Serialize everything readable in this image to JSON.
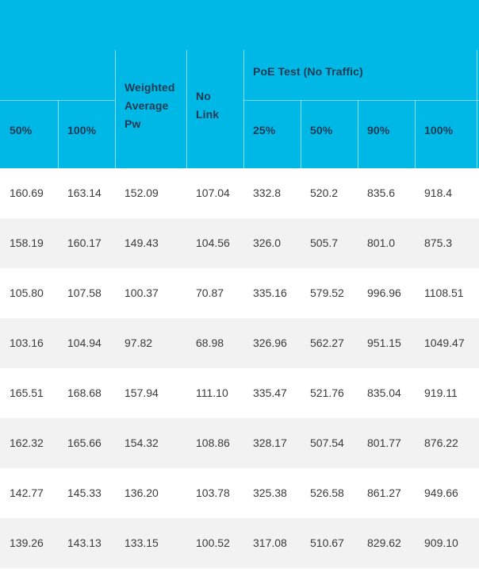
{
  "header": {
    "group_label": "PoE Test (No Traffic)",
    "col_50": "50%",
    "col_100": "100%",
    "weighted_line1": "Weighted",
    "weighted_line2": "Average",
    "weighted_line3": "Pw",
    "nolink_line1": "No",
    "nolink_line2": "Link",
    "poe_25": "25%",
    "poe_50": "50%",
    "poe_90": "90%",
    "poe_100": "100%"
  },
  "rows": [
    [
      "160.69",
      "163.14",
      "152.09",
      "107.04",
      "332.8",
      "520.2",
      "835.6",
      "918.4"
    ],
    [
      "158.19",
      "160.17",
      "149.43",
      "104.56",
      "326.0",
      "505.7",
      "801.0",
      "875.3"
    ],
    [
      "105.80",
      "107.58",
      "100.37",
      "70.87",
      "335.16",
      "579.52",
      "996.96",
      "1108.51"
    ],
    [
      "103.16",
      "104.94",
      "97.82",
      "68.98",
      "326.96",
      "562.27",
      "951.15",
      "1049.47"
    ],
    [
      "165.51",
      "168.68",
      "157.94",
      "111.10",
      "335.47",
      "521.76",
      "835.04",
      "919.11"
    ],
    [
      "162.32",
      "165.66",
      "154.32",
      "108.86",
      "328.17",
      "507.54",
      "801.77",
      "876.22"
    ],
    [
      "142.77",
      "145.33",
      "136.20",
      "103.78",
      "325.38",
      "526.58",
      "861.27",
      "949.66"
    ],
    [
      "139.26",
      "143.13",
      "133.15",
      "100.52",
      "317.08",
      "510.67",
      "829.62",
      "909.10"
    ]
  ]
}
